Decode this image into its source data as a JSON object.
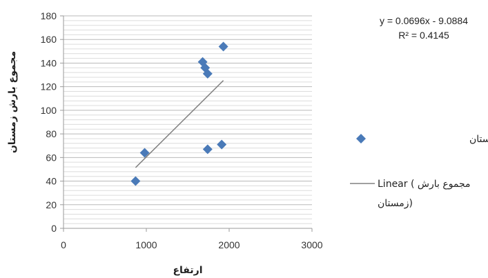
{
  "chart_data": {
    "type": "scatter",
    "xlabel": "ارتفاع",
    "ylabel": "مجموع بارش زمستان",
    "xlim": [
      0,
      3000
    ],
    "ylim": [
      0,
      180
    ],
    "x_ticks": [
      0,
      1000,
      2000,
      3000
    ],
    "y_ticks": [
      0,
      20,
      40,
      60,
      80,
      100,
      120,
      140,
      160,
      180
    ],
    "grid": "horizontal",
    "legend_position": "right",
    "series": [
      {
        "name": "مجموع بارش زمستان",
        "marker": "diamond",
        "color": "#4a7ab8",
        "points": [
          {
            "x": 870,
            "y": 40
          },
          {
            "x": 980,
            "y": 64
          },
          {
            "x": 1680,
            "y": 141
          },
          {
            "x": 1710,
            "y": 136
          },
          {
            "x": 1740,
            "y": 131
          },
          {
            "x": 1740,
            "y": 67
          },
          {
            "x": 1910,
            "y": 71
          },
          {
            "x": 1930,
            "y": 154
          }
        ]
      }
    ],
    "trendline": {
      "type": "linear",
      "legend_label": "Linear ( مجموع بارش",
      "legend_label_line2": "(زمستان",
      "equation": "y = 0.0696x - 9.0884",
      "r_squared": "R² = 0.4145",
      "slope": 0.0696,
      "intercept": -9.0884,
      "x_range": [
        870,
        1930
      ],
      "color": "#808080"
    }
  }
}
